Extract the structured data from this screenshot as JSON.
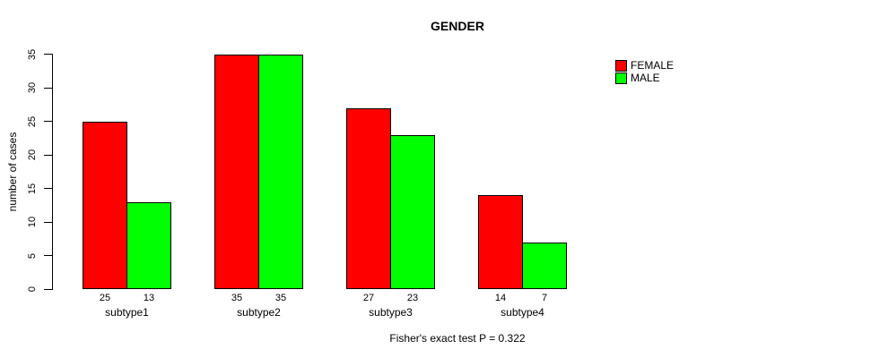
{
  "title": "GENDER",
  "caption": "Fisher's exact test P = 0.322",
  "colors": {
    "female": "#ff0000",
    "male": "#00ff00",
    "axis": "#000000",
    "background": "#ffffff"
  },
  "chart_data": {
    "type": "bar",
    "title": "GENDER",
    "categories": [
      "subtype1",
      "subtype2",
      "subtype3",
      "subtype4"
    ],
    "series": [
      {
        "name": "FEMALE",
        "color": "#ff0000",
        "values": [
          25,
          35,
          27,
          14
        ]
      },
      {
        "name": "MALE",
        "color": "#00ff00",
        "values": [
          13,
          35,
          23,
          7
        ]
      }
    ],
    "value_labels_shown": true,
    "xlabel": "",
    "ylabel": "number of cases",
    "ylim": [
      0,
      35
    ],
    "yticks": [
      0,
      5,
      10,
      15,
      20,
      25,
      30,
      35
    ],
    "grid": false,
    "legend_position": "top-right",
    "annotation": "Fisher's exact test P = 0.322"
  }
}
